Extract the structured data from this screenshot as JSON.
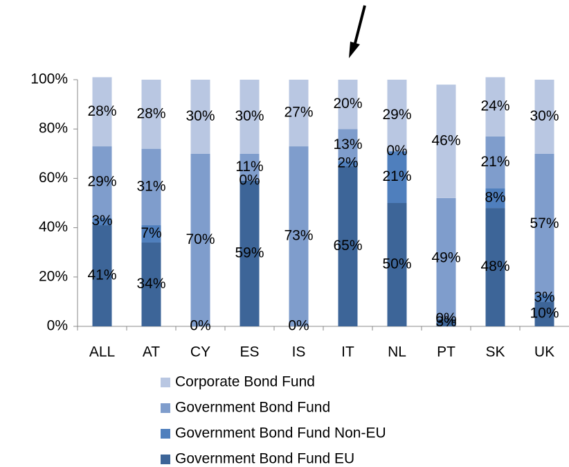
{
  "chart_data": {
    "type": "stacked_bar",
    "categories": [
      "ALL",
      "AT",
      "CY",
      "ES",
      "IS",
      "IT",
      "NL",
      "PT",
      "SK",
      "UK"
    ],
    "series": [
      {
        "name": "Government Bond Fund EU",
        "color": "#3d6598",
        "values": [
          41,
          34,
          0,
          59,
          0,
          65,
          50,
          3,
          48,
          10
        ],
        "value_labels": [
          "41%",
          "34%",
          "0%",
          "59%",
          "0%",
          "65%",
          "50%",
          "3%",
          "48%",
          "10%"
        ]
      },
      {
        "name": "Government Bond Fund Non-EU",
        "color": "#4f7fbd",
        "values": [
          3,
          7,
          null,
          0,
          null,
          2,
          21,
          0,
          8,
          3
        ],
        "value_labels": [
          "3%",
          "7%",
          null,
          "0%",
          null,
          "2%",
          "21%",
          "0%",
          "8%",
          "3%"
        ]
      },
      {
        "name": "Government Bond Fund",
        "color": "#7f9dcc",
        "values": [
          29,
          31,
          70,
          11,
          73,
          13,
          0,
          49,
          21,
          57
        ],
        "value_labels": [
          "29%",
          "31%",
          "70%",
          "11%",
          "73%",
          "13%",
          "0%",
          "49%",
          "21%",
          "57%"
        ]
      },
      {
        "name": "Corporate Bond Fund",
        "color": "#b9c7e2",
        "values": [
          28,
          28,
          30,
          30,
          27,
          20,
          29,
          46,
          24,
          30
        ],
        "value_labels": [
          "28%",
          "28%",
          "30%",
          "30%",
          "27%",
          "20%",
          "29%",
          "46%",
          "24%",
          "30%"
        ]
      }
    ],
    "ylim": [
      0,
      100
    ],
    "yticks": [
      {
        "value": 0,
        "label": "0%"
      },
      {
        "value": 20,
        "label": "20%"
      },
      {
        "value": 40,
        "label": "40%"
      },
      {
        "value": 60,
        "label": "60%"
      },
      {
        "value": 80,
        "label": "80%"
      },
      {
        "value": 100,
        "label": "100%"
      }
    ]
  }
}
